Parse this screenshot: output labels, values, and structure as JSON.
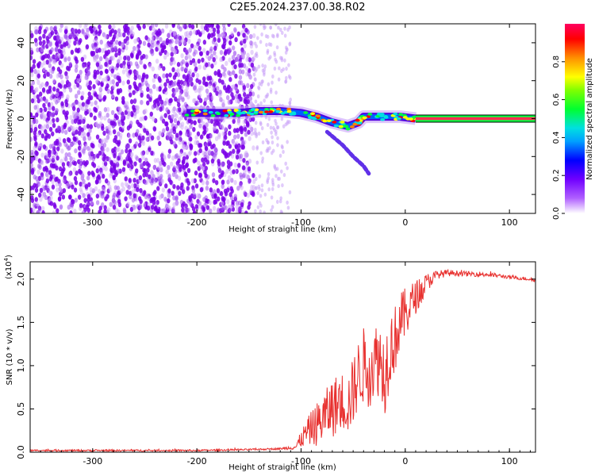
{
  "title": "C2E5.2024.237.00.38.R02",
  "chart_data": [
    {
      "type": "heatmap",
      "title": "C2E5.2024.237.00.38.R02",
      "xlabel": "Height of straight line (km)",
      "ylabel": "Frequency (Hz)",
      "xlim": [
        -360,
        125
      ],
      "ylim": [
        -50,
        50
      ],
      "xticks": [
        -300,
        -200,
        -100,
        0,
        100
      ],
      "yticks": [
        -40,
        -20,
        0,
        20,
        40
      ],
      "colorbar": {
        "label": "Normalized spectral amplitude",
        "range": [
          0.0,
          1.0
        ],
        "ticks": [
          "0.0",
          "0.2",
          "0.4",
          "0.6",
          "0.8"
        ],
        "tick_values": [
          0.0,
          0.2,
          0.4,
          0.6,
          0.8
        ],
        "colors": [
          "#ffffff",
          "#8000ff",
          "#0000ff",
          "#00d0ff",
          "#00ff40",
          "#ffff00",
          "#ff8000",
          "#ff0000",
          "#ff0060"
        ]
      },
      "features": {
        "noise_region_x": [
          -360,
          -145
        ],
        "sparse_region_x": [
          -145,
          -110
        ],
        "main_trace": [
          [
            -210,
            3
          ],
          [
            -180,
            3
          ],
          [
            -160,
            3
          ],
          [
            -140,
            4
          ],
          [
            -120,
            4
          ],
          [
            -100,
            3
          ],
          [
            -85,
            1
          ],
          [
            -70,
            -2
          ],
          [
            -55,
            -4
          ],
          [
            -45,
            -2
          ],
          [
            -40,
            1
          ],
          [
            -20,
            1
          ],
          [
            -5,
            1
          ],
          [
            10,
            0
          ],
          [
            125,
            0
          ]
        ],
        "side_branch": [
          [
            -75,
            -7
          ],
          [
            -60,
            -14
          ],
          [
            -50,
            -20
          ],
          [
            -40,
            -25
          ],
          [
            -35,
            -29
          ]
        ],
        "steady_line_x": [
          10,
          125
        ],
        "steady_line_y": 0
      },
      "noise_color": "#7a00e8"
    },
    {
      "type": "line",
      "xlabel": "Height of straight line (km)",
      "ylabel": "SNR (10 * v/v)",
      "y_multiplier": "(x10",
      "y_multiplier_exp": "4",
      "y_multiplier_close": ")",
      "xlim": [
        -360,
        125
      ],
      "ylim": [
        0,
        2.2
      ],
      "xticks": [
        -300,
        -200,
        -100,
        0,
        100
      ],
      "yticks": [
        "0.0",
        "0.5",
        "1.0",
        "1.5",
        "2.0"
      ],
      "ytick_values": [
        0,
        0.5,
        1.0,
        1.5,
        2.0
      ],
      "series": [
        {
          "color": "#e8312f",
          "x": [
            -360,
            -300,
            -250,
            -200,
            -150,
            -120,
            -105,
            -100,
            -95,
            -90,
            -85,
            -80,
            -75,
            -70,
            -65,
            -60,
            -55,
            -50,
            -45,
            -40,
            -35,
            -30,
            -25,
            -20,
            -15,
            -10,
            -5,
            0,
            5,
            10,
            15,
            20,
            25,
            30,
            40,
            50,
            60,
            70,
            80,
            90,
            100,
            110,
            120,
            125
          ],
          "values": [
            0.02,
            0.02,
            0.02,
            0.02,
            0.03,
            0.04,
            0.06,
            0.15,
            0.22,
            0.28,
            0.32,
            0.38,
            0.45,
            0.52,
            0.55,
            0.6,
            0.55,
            0.7,
            0.9,
            1.0,
            0.95,
            1.05,
            1.1,
            0.9,
            1.2,
            1.3,
            1.5,
            1.6,
            1.7,
            1.8,
            1.85,
            1.95,
            2.0,
            2.05,
            2.07,
            2.07,
            2.06,
            2.06,
            2.05,
            2.04,
            2.02,
            2.01,
            2.0,
            1.99
          ],
          "noise_amplitude": [
            0.01,
            0.01,
            0.01,
            0.01,
            0.01,
            0.01,
            0.03,
            0.1,
            0.15,
            0.2,
            0.25,
            0.3,
            0.3,
            0.35,
            0.35,
            0.35,
            0.35,
            0.4,
            0.4,
            0.45,
            0.45,
            0.45,
            0.45,
            0.5,
            0.45,
            0.4,
            0.35,
            0.3,
            0.25,
            0.2,
            0.15,
            0.12,
            0.08,
            0.05,
            0.04,
            0.03,
            0.03,
            0.03,
            0.03,
            0.02,
            0.02,
            0.02,
            0.02,
            0.02
          ]
        }
      ]
    }
  ]
}
